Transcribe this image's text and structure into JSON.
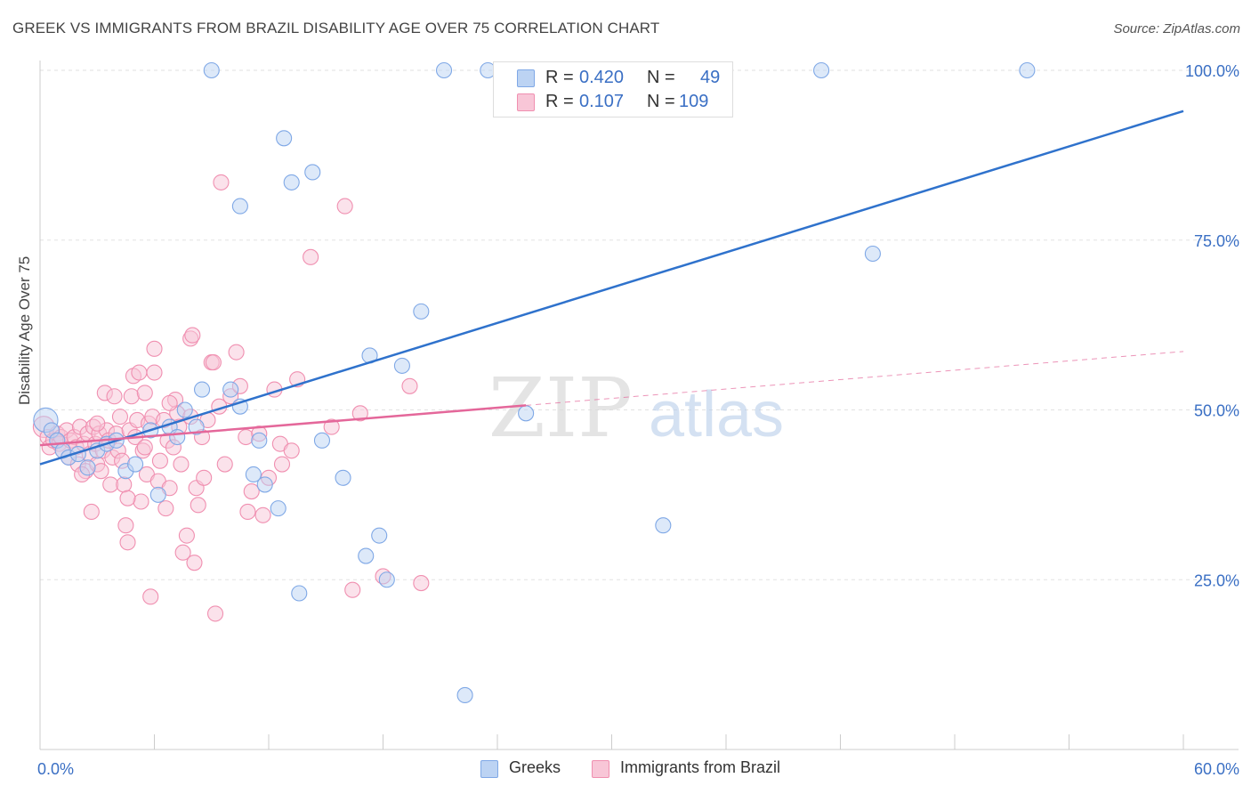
{
  "title": "GREEK VS IMMIGRANTS FROM BRAZIL DISABILITY AGE OVER 75 CORRELATION CHART",
  "source": "Source: ZipAtlas.com",
  "watermark": {
    "zip": "ZIP",
    "atlas": "atlas"
  },
  "colors": {
    "greeks": "#7fa8e6",
    "greeks_fill": "#bcd3f3",
    "greeks_line": "#2f72cc",
    "brazil": "#f08fb0",
    "brazil_fill": "#f8c6d7",
    "brazil_line": "#e4679a",
    "axis_text": "#3a6fc4"
  },
  "legend": {
    "greeks": {
      "r_label": "R =",
      "r_value": "0.420",
      "n_label": "N =",
      "n_value": "49"
    },
    "brazil": {
      "r_label": "R =",
      "r_value": "0.107",
      "n_label": "N =",
      "n_value": "109"
    }
  },
  "chart_data": {
    "type": "scatter",
    "title": "GREEK VS IMMIGRANTS FROM BRAZIL DISABILITY AGE OVER 75 CORRELATION CHART",
    "xlabel": "",
    "ylabel": "Disability Age Over 75",
    "xlim": [
      0,
      60
    ],
    "ylim": [
      0,
      105
    ],
    "x_tick_labels": [
      "0.0%",
      "60.0%"
    ],
    "y_ticks": [
      25,
      50,
      75,
      100
    ],
    "y_tick_labels": [
      "25.0%",
      "50.0%",
      "75.0%",
      "100.0%"
    ],
    "grid": true,
    "legend_position": "top-center",
    "series": [
      {
        "name": "Greeks",
        "r": 0.42,
        "n": 49,
        "trend": {
          "x": [
            0,
            60
          ],
          "y": [
            42.0,
            94.0
          ],
          "dashed_from": null
        },
        "points": [
          [
            0.3,
            48.5,
            1.6
          ],
          [
            0.6,
            47.0,
            1
          ],
          [
            0.9,
            45.5,
            1
          ],
          [
            1.2,
            44.0,
            1
          ],
          [
            1.5,
            43.0,
            1
          ],
          [
            2.0,
            43.5,
            1
          ],
          [
            2.5,
            41.5,
            1
          ],
          [
            3.0,
            44.0,
            1
          ],
          [
            3.5,
            45.0,
            1
          ],
          [
            4.0,
            45.5,
            1
          ],
          [
            4.5,
            41.0,
            1
          ],
          [
            5.0,
            42.0,
            1
          ],
          [
            5.8,
            47.0,
            1
          ],
          [
            6.2,
            37.5,
            1
          ],
          [
            6.8,
            47.5,
            1
          ],
          [
            7.2,
            46.0,
            1
          ],
          [
            7.6,
            50.0,
            1
          ],
          [
            8.2,
            47.5,
            1
          ],
          [
            8.5,
            53.0,
            1
          ],
          [
            9.0,
            100.0,
            1
          ],
          [
            10.0,
            53.0,
            1
          ],
          [
            10.5,
            50.5,
            1
          ],
          [
            10.5,
            80.0,
            1
          ],
          [
            11.2,
            40.5,
            1
          ],
          [
            11.5,
            45.5,
            1
          ],
          [
            11.8,
            39.0,
            1
          ],
          [
            12.5,
            35.5,
            1
          ],
          [
            12.8,
            90.0,
            1
          ],
          [
            13.2,
            83.5,
            1
          ],
          [
            13.6,
            23.0,
            1
          ],
          [
            14.3,
            85.0,
            1
          ],
          [
            14.8,
            45.5,
            1
          ],
          [
            15.9,
            40.0,
            1
          ],
          [
            17.1,
            28.5,
            1
          ],
          [
            17.3,
            58.0,
            1
          ],
          [
            17.8,
            31.5,
            1
          ],
          [
            18.2,
            25.0,
            1
          ],
          [
            19.0,
            56.5,
            1
          ],
          [
            20.0,
            64.5,
            1
          ],
          [
            21.2,
            100.0,
            1
          ],
          [
            22.3,
            8.0,
            1
          ],
          [
            23.5,
            100.0,
            1
          ],
          [
            24.7,
            100.0,
            1
          ],
          [
            25.5,
            49.5,
            1
          ],
          [
            32.7,
            33.0,
            1
          ],
          [
            41.0,
            100.0,
            1
          ],
          [
            43.7,
            73.0,
            1
          ],
          [
            51.8,
            100.0,
            1
          ],
          [
            26.0,
            100.0,
            1
          ]
        ]
      },
      {
        "name": "Immigrants from Brazil",
        "r": 0.107,
        "n": 109,
        "trend": {
          "x": [
            0,
            60
          ],
          "y": [
            44.8,
            58.6
          ],
          "dashed_from": 25.5
        },
        "points": [
          [
            0.2,
            47.5,
            1.4
          ],
          [
            0.4,
            46.0,
            1
          ],
          [
            0.5,
            44.5,
            1
          ],
          [
            0.7,
            45.5,
            1
          ],
          [
            0.9,
            46.5,
            1
          ],
          [
            1.0,
            45.0,
            1
          ],
          [
            1.1,
            46.0,
            1
          ],
          [
            1.2,
            44.0,
            1
          ],
          [
            1.4,
            47.0,
            1
          ],
          [
            1.5,
            43.0,
            1
          ],
          [
            1.6,
            45.5,
            1
          ],
          [
            1.8,
            46.0,
            1
          ],
          [
            1.9,
            44.5,
            1
          ],
          [
            2.0,
            42.0,
            1
          ],
          [
            2.1,
            47.5,
            1
          ],
          [
            2.3,
            45.0,
            1
          ],
          [
            2.4,
            41.0,
            1
          ],
          [
            2.5,
            46.5,
            1
          ],
          [
            2.6,
            43.5,
            1
          ],
          [
            2.7,
            35.0,
            1
          ],
          [
            2.8,
            47.5,
            1
          ],
          [
            2.9,
            45.0,
            1
          ],
          [
            3.0,
            42.0,
            1
          ],
          [
            3.1,
            46.5,
            1
          ],
          [
            3.2,
            41.0,
            1
          ],
          [
            3.3,
            44.0,
            1
          ],
          [
            3.4,
            52.5,
            1
          ],
          [
            3.5,
            47.0,
            1
          ],
          [
            3.6,
            45.5,
            1
          ],
          [
            3.7,
            39.0,
            1
          ],
          [
            3.8,
            43.0,
            1
          ],
          [
            3.9,
            52.0,
            1
          ],
          [
            4.0,
            46.5,
            1
          ],
          [
            4.1,
            44.0,
            1
          ],
          [
            4.2,
            49.0,
            1
          ],
          [
            4.3,
            42.5,
            1
          ],
          [
            4.4,
            39.0,
            1
          ],
          [
            4.5,
            33.0,
            1
          ],
          [
            4.6,
            30.5,
            1
          ],
          [
            4.7,
            47.0,
            1
          ],
          [
            4.8,
            52.0,
            1
          ],
          [
            4.9,
            55.0,
            1
          ],
          [
            5.0,
            46.0,
            1
          ],
          [
            5.1,
            48.5,
            1
          ],
          [
            5.2,
            55.5,
            1
          ],
          [
            5.3,
            36.5,
            1
          ],
          [
            5.4,
            44.0,
            1
          ],
          [
            5.5,
            52.5,
            1
          ],
          [
            5.6,
            40.5,
            1
          ],
          [
            5.7,
            48.0,
            1
          ],
          [
            5.8,
            22.5,
            1
          ],
          [
            5.9,
            49.0,
            1
          ],
          [
            6.0,
            55.5,
            1
          ],
          [
            6.0,
            59.0,
            1
          ],
          [
            6.2,
            39.5,
            1
          ],
          [
            6.3,
            42.5,
            1
          ],
          [
            6.5,
            48.5,
            1
          ],
          [
            6.6,
            35.5,
            1
          ],
          [
            6.7,
            45.5,
            1
          ],
          [
            6.8,
            38.5,
            1
          ],
          [
            7.0,
            44.5,
            1
          ],
          [
            7.1,
            51.5,
            1
          ],
          [
            7.2,
            49.5,
            1
          ],
          [
            7.3,
            47.5,
            1
          ],
          [
            7.4,
            42.0,
            1
          ],
          [
            7.5,
            29.0,
            1
          ],
          [
            7.7,
            31.5,
            1
          ],
          [
            7.9,
            60.5,
            1
          ],
          [
            8.0,
            61.0,
            1
          ],
          [
            8.1,
            27.5,
            1
          ],
          [
            8.2,
            38.5,
            1
          ],
          [
            8.3,
            36.0,
            1
          ],
          [
            8.5,
            46.0,
            1
          ],
          [
            8.6,
            40.0,
            1
          ],
          [
            8.8,
            48.5,
            1
          ],
          [
            9.0,
            57.0,
            1
          ],
          [
            9.1,
            57.0,
            1
          ],
          [
            9.2,
            20.0,
            1
          ],
          [
            9.4,
            50.5,
            1
          ],
          [
            9.5,
            83.5,
            1
          ],
          [
            10.0,
            52.0,
            1
          ],
          [
            10.3,
            58.5,
            1
          ],
          [
            10.5,
            53.5,
            1
          ],
          [
            10.8,
            46.0,
            1
          ],
          [
            11.1,
            38.0,
            1
          ],
          [
            11.5,
            46.5,
            1
          ],
          [
            11.7,
            34.5,
            1
          ],
          [
            12.0,
            40.0,
            1
          ],
          [
            12.3,
            53.0,
            1
          ],
          [
            12.7,
            42.0,
            1
          ],
          [
            13.5,
            54.5,
            1
          ],
          [
            14.2,
            72.5,
            1
          ],
          [
            15.3,
            47.5,
            1
          ],
          [
            16.0,
            80.0,
            1
          ],
          [
            16.4,
            23.5,
            1
          ],
          [
            16.8,
            49.5,
            1
          ],
          [
            18.0,
            25.5,
            1
          ],
          [
            19.4,
            53.5,
            1
          ],
          [
            20.0,
            24.5,
            1
          ],
          [
            7.9,
            49.0,
            1
          ],
          [
            5.5,
            44.5,
            1
          ],
          [
            6.8,
            51.0,
            1
          ],
          [
            9.7,
            42.0,
            1
          ],
          [
            12.6,
            45.0,
            1
          ],
          [
            3.0,
            48.0,
            1
          ],
          [
            2.2,
            40.5,
            1
          ],
          [
            4.6,
            37.0,
            1
          ],
          [
            13.2,
            44.0,
            1
          ],
          [
            10.9,
            35.0,
            1
          ]
        ]
      }
    ]
  },
  "bottom_legend": {
    "greeks_label": "Greeks",
    "brazil_label": "Immigrants from Brazil"
  }
}
